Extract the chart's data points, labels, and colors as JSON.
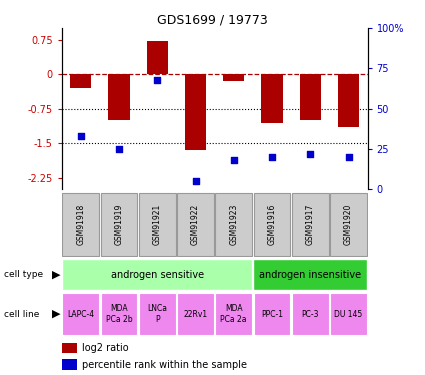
{
  "title": "GDS1699 / 19773",
  "samples": [
    "GSM91918",
    "GSM91919",
    "GSM91921",
    "GSM91922",
    "GSM91923",
    "GSM91916",
    "GSM91917",
    "GSM91920"
  ],
  "log2_ratio": [
    -0.3,
    -1.0,
    0.72,
    -1.65,
    -0.15,
    -1.05,
    -1.0,
    -1.15
  ],
  "percentile_rank": [
    33,
    25,
    68,
    5,
    18,
    20,
    22,
    20
  ],
  "bar_color": "#aa0000",
  "dot_color": "#0000cc",
  "ylim_left": [
    -2.5,
    1.0
  ],
  "ylim_right": [
    0,
    100
  ],
  "yticks_left": [
    0.75,
    0,
    -0.75,
    -1.5,
    -2.25
  ],
  "yticks_right": [
    100,
    75,
    50,
    25,
    0
  ],
  "dotted_lines": [
    -0.75,
    -1.5
  ],
  "cell_type_groups": [
    {
      "label": "androgen sensitive",
      "start": 0,
      "end": 4,
      "color": "#aaffaa"
    },
    {
      "label": "androgen insensitive",
      "start": 5,
      "end": 7,
      "color": "#33cc33"
    }
  ],
  "cell_lines": [
    {
      "label": "LAPC-4"
    },
    {
      "label": "MDA\nPCa 2b"
    },
    {
      "label": "LNCa\nP"
    },
    {
      "label": "22Rv1"
    },
    {
      "label": "MDA\nPCa 2a"
    },
    {
      "label": "PPC-1"
    },
    {
      "label": "PC-3"
    },
    {
      "label": "DU 145"
    }
  ],
  "cell_line_color": "#ee88ee",
  "gsm_box_color": "#cccccc",
  "gsm_box_edge": "#999999",
  "left_label_color": "#cc0000",
  "right_label_color": "#0000cc",
  "bar_width": 0.55
}
